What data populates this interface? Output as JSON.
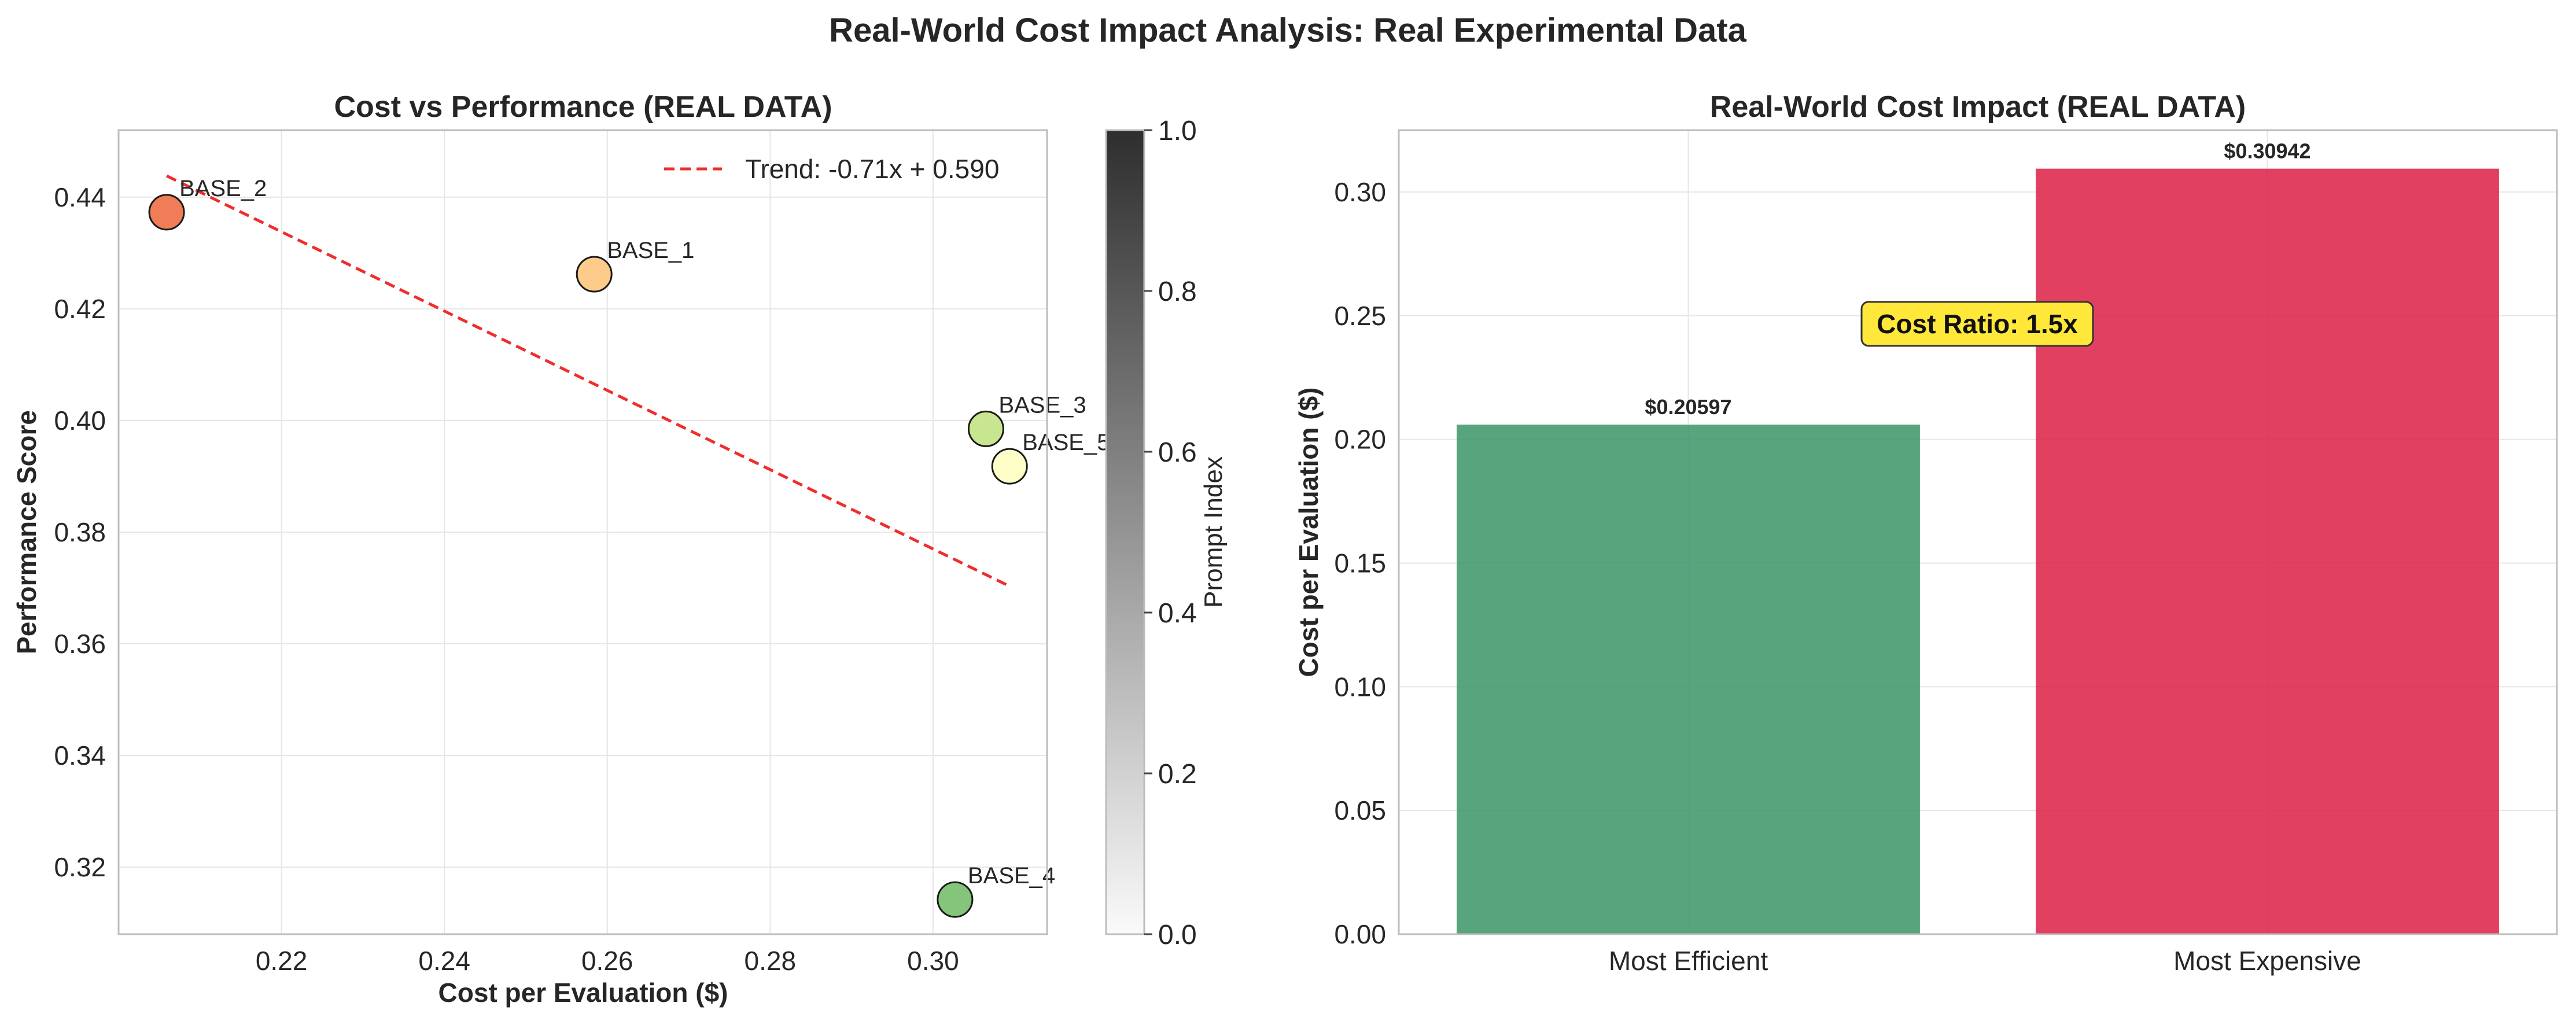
{
  "figure_title": "Real-World Cost Impact Analysis: Real Experimental Data",
  "chart_data": [
    {
      "type": "scatter",
      "title": "Cost vs Performance (REAL DATA)",
      "xlabel": "Cost per Evaluation ($)",
      "ylabel": "Performance Score",
      "xlim": [
        0.2,
        0.314
      ],
      "ylim": [
        0.308,
        0.452
      ],
      "xticks": [
        0.22,
        0.24,
        0.26,
        0.28,
        0.3
      ],
      "yticks": [
        0.32,
        0.34,
        0.36,
        0.38,
        0.4,
        0.42,
        0.44
      ],
      "grid": true,
      "points": [
        {
          "label": "BASE_1",
          "x": 0.2584,
          "y": 0.4262,
          "color": "#fdcc8a"
        },
        {
          "label": "BASE_2",
          "x": 0.2059,
          "y": 0.4373,
          "color": "#f07c58"
        },
        {
          "label": "BASE_3",
          "x": 0.3065,
          "y": 0.3985,
          "color": "#c8e690"
        },
        {
          "label": "BASE_4",
          "x": 0.3027,
          "y": 0.3142,
          "color": "#84c57b"
        },
        {
          "label": "BASE_5",
          "x": 0.3094,
          "y": 0.3918,
          "color": "#fefec8"
        }
      ],
      "trend": {
        "label": "Trend: -0.71x + 0.590",
        "slope": -0.71,
        "intercept": 0.59,
        "x_range": [
          0.2059,
          0.3094
        ],
        "color": "#f02d2d"
      },
      "legend_position": "top-right",
      "colorbar": {
        "label": "Prompt Index",
        "range": [
          0.0,
          1.0
        ],
        "ticks": [
          "0.0",
          "0.2",
          "0.4",
          "0.6",
          "0.8",
          "1.0"
        ]
      }
    },
    {
      "type": "bar",
      "title": "Real-World Cost Impact (REAL DATA)",
      "xlabel": "",
      "ylabel": "Cost per Evaluation ($)",
      "categories": [
        "Most Efficient",
        "Most Expensive"
      ],
      "values": [
        0.20597,
        0.30942
      ],
      "value_labels": [
        "$0.20597",
        "$0.30942"
      ],
      "colors": [
        "#3b9466",
        "#dc1f45"
      ],
      "ylim": [
        0,
        0.325
      ],
      "yticks": [
        "0.00",
        "0.05",
        "0.10",
        "0.15",
        "0.20",
        "0.25",
        "0.30"
      ],
      "grid": true,
      "annotation": {
        "text": "Cost Ratio: 1.5x",
        "y": 0.2467,
        "color": "#ffe83a"
      }
    }
  ]
}
